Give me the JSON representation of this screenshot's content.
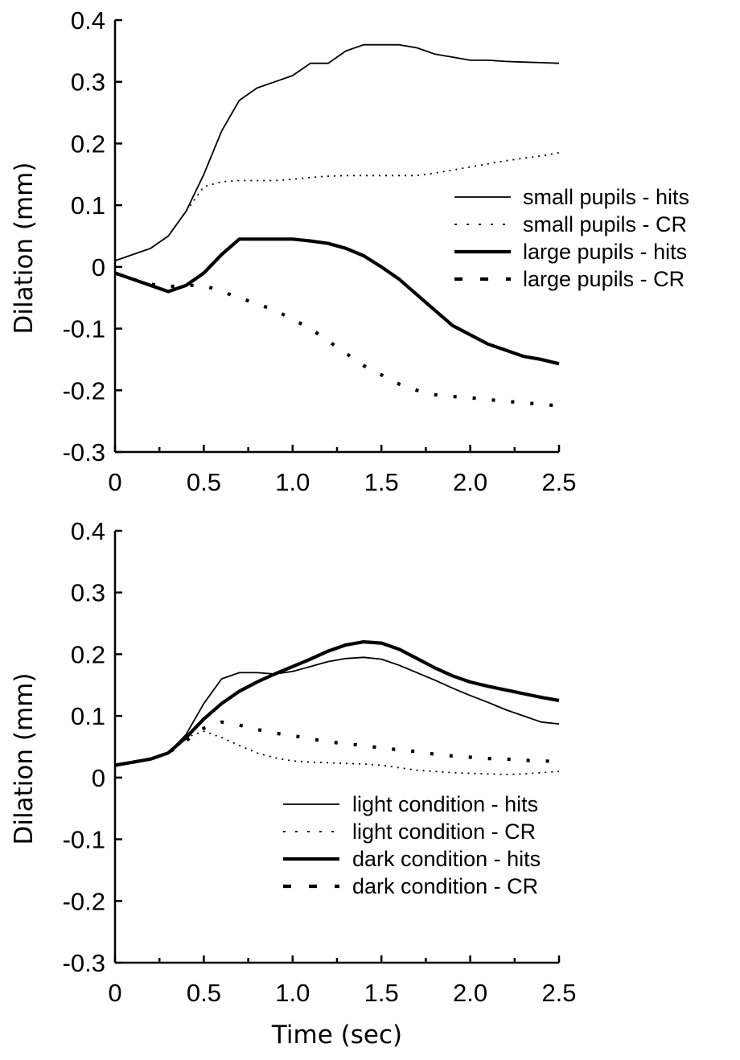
{
  "chart_data": [
    {
      "type": "line",
      "ylabel": "Dilation (mm)",
      "xlabel": "",
      "xlim": [
        0,
        2.5
      ],
      "ylim": [
        -0.3,
        0.4
      ],
      "xticks": [
        "0",
        "0.5",
        "1.0",
        "1.5",
        "2.0",
        "2.5"
      ],
      "yticks": [
        "-0.3",
        "-0.2",
        "-0.1",
        "0",
        "0.1",
        "0.2",
        "0.3",
        "0.4"
      ],
      "grid": false,
      "legend_position": "right",
      "series": [
        {
          "name": "small pupils - hits",
          "style": "thin-solid",
          "x": [
            0,
            0.1,
            0.2,
            0.3,
            0.4,
            0.5,
            0.6,
            0.7,
            0.8,
            0.9,
            1.0,
            1.1,
            1.2,
            1.3,
            1.4,
            1.5,
            1.6,
            1.7,
            1.8,
            1.9,
            2.0,
            2.1,
            2.2,
            2.3,
            2.4,
            2.5
          ],
          "y": [
            0.01,
            0.02,
            0.03,
            0.05,
            0.09,
            0.15,
            0.22,
            0.27,
            0.29,
            0.3,
            0.31,
            0.33,
            0.33,
            0.35,
            0.36,
            0.36,
            0.36,
            0.355,
            0.345,
            0.34,
            0.335,
            0.335,
            0.333,
            0.332,
            0.331,
            0.33
          ]
        },
        {
          "name": "small pupils - CR",
          "style": "thin-dotted",
          "x": [
            0,
            0.1,
            0.2,
            0.3,
            0.4,
            0.5,
            0.6,
            0.7,
            0.8,
            0.9,
            1.0,
            1.1,
            1.2,
            1.3,
            1.4,
            1.5,
            1.6,
            1.7,
            1.8,
            1.9,
            2.0,
            2.1,
            2.2,
            2.3,
            2.4,
            2.5
          ],
          "y": [
            0.01,
            0.02,
            0.03,
            0.05,
            0.09,
            0.13,
            0.138,
            0.14,
            0.14,
            0.14,
            0.142,
            0.145,
            0.147,
            0.148,
            0.148,
            0.148,
            0.148,
            0.148,
            0.152,
            0.157,
            0.162,
            0.167,
            0.172,
            0.176,
            0.18,
            0.185
          ]
        },
        {
          "name": "large pupils - hits",
          "style": "thick-solid",
          "x": [
            0,
            0.1,
            0.2,
            0.3,
            0.4,
            0.5,
            0.6,
            0.7,
            0.8,
            0.9,
            1.0,
            1.1,
            1.2,
            1.3,
            1.4,
            1.5,
            1.6,
            1.7,
            1.8,
            1.9,
            2.0,
            2.1,
            2.2,
            2.3,
            2.4,
            2.5
          ],
          "y": [
            -0.01,
            -0.02,
            -0.03,
            -0.04,
            -0.03,
            -0.01,
            0.02,
            0.045,
            0.045,
            0.045,
            0.045,
            0.042,
            0.038,
            0.03,
            0.018,
            0.0,
            -0.02,
            -0.045,
            -0.07,
            -0.095,
            -0.11,
            -0.125,
            -0.135,
            -0.145,
            -0.15,
            -0.157
          ]
        },
        {
          "name": "large pupils - CR",
          "style": "thick-dashed",
          "x": [
            0,
            0.1,
            0.2,
            0.3,
            0.4,
            0.5,
            0.6,
            0.7,
            0.8,
            0.9,
            1.0,
            1.1,
            1.2,
            1.3,
            1.4,
            1.5,
            1.6,
            1.7,
            1.8,
            1.9,
            2.0,
            2.1,
            2.2,
            2.3,
            2.4,
            2.5
          ],
          "y": [
            -0.01,
            -0.02,
            -0.028,
            -0.032,
            -0.03,
            -0.03,
            -0.04,
            -0.05,
            -0.06,
            -0.07,
            -0.085,
            -0.1,
            -0.12,
            -0.14,
            -0.16,
            -0.175,
            -0.19,
            -0.2,
            -0.207,
            -0.21,
            -0.212,
            -0.215,
            -0.218,
            -0.22,
            -0.223,
            -0.225
          ]
        }
      ]
    },
    {
      "type": "line",
      "ylabel": "Dilation (mm)",
      "xlabel": "Time (sec)",
      "xlim": [
        0,
        2.5
      ],
      "ylim": [
        -0.3,
        0.4
      ],
      "xticks": [
        "0",
        "0.5",
        "1.0",
        "1.5",
        "2.0",
        "2.5"
      ],
      "yticks": [
        "-0.3",
        "-0.2",
        "-0.1",
        "0",
        "0.1",
        "0.2",
        "0.3",
        "0.4"
      ],
      "grid": false,
      "legend_position": "lower-right",
      "series": [
        {
          "name": "light condition - hits",
          "style": "thin-solid",
          "x": [
            0,
            0.1,
            0.2,
            0.3,
            0.4,
            0.5,
            0.6,
            0.7,
            0.8,
            0.9,
            1.0,
            1.1,
            1.2,
            1.3,
            1.4,
            1.5,
            1.6,
            1.7,
            1.8,
            1.9,
            2.0,
            2.1,
            2.2,
            2.3,
            2.4,
            2.5
          ],
          "y": [
            0.02,
            0.025,
            0.03,
            0.04,
            0.07,
            0.12,
            0.16,
            0.17,
            0.17,
            0.168,
            0.172,
            0.18,
            0.188,
            0.193,
            0.195,
            0.192,
            0.182,
            0.17,
            0.158,
            0.145,
            0.133,
            0.122,
            0.11,
            0.1,
            0.09,
            0.087
          ]
        },
        {
          "name": "light condition - CR",
          "style": "thin-dotted",
          "x": [
            0,
            0.1,
            0.2,
            0.3,
            0.4,
            0.5,
            0.6,
            0.7,
            0.8,
            0.9,
            1.0,
            1.1,
            1.2,
            1.3,
            1.4,
            1.5,
            1.6,
            1.7,
            1.8,
            1.9,
            2.0,
            2.1,
            2.2,
            2.3,
            2.4,
            2.5
          ],
          "y": [
            0.02,
            0.025,
            0.03,
            0.04,
            0.065,
            0.075,
            0.065,
            0.052,
            0.04,
            0.032,
            0.027,
            0.025,
            0.024,
            0.023,
            0.022,
            0.02,
            0.016,
            0.012,
            0.01,
            0.008,
            0.007,
            0.006,
            0.005,
            0.006,
            0.008,
            0.01
          ]
        },
        {
          "name": "dark condition - hits",
          "style": "thick-solid",
          "x": [
            0,
            0.1,
            0.2,
            0.3,
            0.4,
            0.5,
            0.6,
            0.7,
            0.8,
            0.9,
            1.0,
            1.1,
            1.2,
            1.3,
            1.4,
            1.5,
            1.6,
            1.7,
            1.8,
            1.9,
            2.0,
            2.1,
            2.2,
            2.3,
            2.4,
            2.5
          ],
          "y": [
            0.02,
            0.025,
            0.03,
            0.04,
            0.065,
            0.095,
            0.12,
            0.14,
            0.155,
            0.168,
            0.18,
            0.192,
            0.205,
            0.215,
            0.22,
            0.218,
            0.208,
            0.193,
            0.178,
            0.165,
            0.155,
            0.148,
            0.142,
            0.136,
            0.13,
            0.125
          ]
        },
        {
          "name": "dark condition - CR",
          "style": "thick-dashed",
          "x": [
            0,
            0.1,
            0.2,
            0.3,
            0.4,
            0.5,
            0.6,
            0.7,
            0.8,
            0.9,
            1.0,
            1.1,
            1.2,
            1.3,
            1.4,
            1.5,
            1.6,
            1.7,
            1.8,
            1.9,
            2.0,
            2.1,
            2.2,
            2.3,
            2.4,
            2.5
          ],
          "y": [
            0.02,
            0.025,
            0.03,
            0.04,
            0.06,
            0.08,
            0.09,
            0.085,
            0.078,
            0.072,
            0.068,
            0.063,
            0.058,
            0.055,
            0.052,
            0.048,
            0.045,
            0.042,
            0.038,
            0.035,
            0.033,
            0.031,
            0.03,
            0.028,
            0.027,
            0.026
          ]
        }
      ]
    }
  ]
}
